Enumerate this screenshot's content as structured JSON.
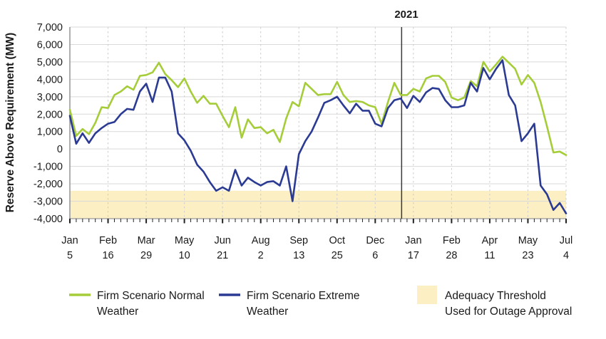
{
  "chart_data": {
    "type": "line",
    "title": "",
    "xlabel": "",
    "ylabel": "Reserve Above Requirement (MW)",
    "ylim": [
      -4000,
      7000
    ],
    "ytick_step": 1000,
    "ytick_labels": [
      "7,000",
      "6,000",
      "5,000",
      "4,000",
      "3,000",
      "2,000",
      "1,000",
      "0",
      "-1,000",
      "-2,000",
      "-3,000",
      "-4,000"
    ],
    "x_weeks_total": 78,
    "grid": "on",
    "xtick_weeks": [
      0,
      6,
      12,
      18,
      24,
      30,
      36,
      42,
      48,
      54,
      60,
      66,
      72,
      78
    ],
    "xticks": [
      {
        "month": "Jan",
        "day": "5"
      },
      {
        "month": "Feb",
        "day": "16"
      },
      {
        "month": "Mar",
        "day": "29"
      },
      {
        "month": "May",
        "day": "10"
      },
      {
        "month": "Jun",
        "day": "21"
      },
      {
        "month": "Aug",
        "day": "2"
      },
      {
        "month": "Sep",
        "day": "13"
      },
      {
        "month": "Oct",
        "day": "25"
      },
      {
        "month": "Dec",
        "day": "6"
      },
      {
        "month": "Jan",
        "day": "17"
      },
      {
        "month": "Feb",
        "day": "28"
      },
      {
        "month": "Apr",
        "day": "11"
      },
      {
        "month": "May",
        "day": "23"
      },
      {
        "month": "Jul",
        "day": "4"
      }
    ],
    "annotation": {
      "label": "2021",
      "week": 52.15
    },
    "band": {
      "label_lines": [
        "Adequacy Threshold",
        "Used for Outage Approval"
      ],
      "from": -4000,
      "to": -2400,
      "color": "#fcefc3"
    },
    "series": [
      {
        "name": "Firm Scenario Normal Weather",
        "color": "#a5cd39",
        "values": [
          2250,
          750,
          1150,
          850,
          1500,
          2400,
          2350,
          3100,
          3300,
          3600,
          3400,
          4200,
          4250,
          4400,
          4950,
          4300,
          3950,
          3550,
          4050,
          3300,
          2650,
          3050,
          2600,
          2600,
          1900,
          1250,
          2400,
          650,
          1700,
          1200,
          1250,
          900,
          1100,
          400,
          1750,
          2700,
          2450,
          3800,
          3450,
          3100,
          3150,
          3150,
          3850,
          3100,
          2700,
          2750,
          2700,
          2500,
          2400,
          1450,
          2700,
          3800,
          3100,
          3100,
          3450,
          3300,
          4050,
          4200,
          4200,
          3850,
          2950,
          2800,
          2950,
          3900,
          3600,
          5000,
          4450,
          4850,
          5300,
          4950,
          4600,
          3700,
          4250,
          3800,
          2700,
          1300,
          -200,
          -150,
          -350
        ]
      },
      {
        "name": "Firm Scenario Extreme Weather",
        "color": "#2b3a92",
        "values": [
          1900,
          300,
          900,
          350,
          900,
          1200,
          1450,
          1550,
          2000,
          2300,
          2250,
          3300,
          3750,
          2700,
          4100,
          4100,
          3300,
          900,
          500,
          -100,
          -900,
          -1300,
          -1900,
          -2400,
          -2200,
          -2400,
          -1200,
          -2100,
          -1650,
          -1900,
          -2100,
          -1900,
          -1850,
          -2100,
          -1000,
          -3000,
          -300,
          450,
          1000,
          1800,
          2650,
          2800,
          3000,
          2500,
          2050,
          2600,
          2200,
          2200,
          1450,
          1300,
          2350,
          2800,
          2900,
          2350,
          3050,
          2700,
          3250,
          3500,
          3450,
          2800,
          2400,
          2400,
          2500,
          3800,
          3300,
          4650,
          4000,
          4600,
          5100,
          3100,
          2500,
          450,
          900,
          1450,
          -2100,
          -2600,
          -3500,
          -3100,
          -3700
        ]
      }
    ],
    "legend": [
      {
        "swatch": "line",
        "color": "#a5cd39",
        "label_lines": [
          "Firm Scenario Normal",
          "Weather"
        ]
      },
      {
        "swatch": "line",
        "color": "#2b3a92",
        "label_lines": [
          "Firm Scenario Extreme",
          "Weather"
        ]
      },
      {
        "swatch": "box",
        "color": "#fcefc3",
        "label_lines": [
          "Adequacy Threshold",
          "Used for Outage Approval"
        ]
      }
    ],
    "legend_position": "bottom"
  },
  "style": {
    "grid_color": "#d9d9d9",
    "dashed_grid_color": "#cccccc",
    "axis_color": "#9b9b9b",
    "tick_color": "#222222",
    "annotation_line_color": "#3a3a3a",
    "text_color": "#1a1a1a"
  }
}
